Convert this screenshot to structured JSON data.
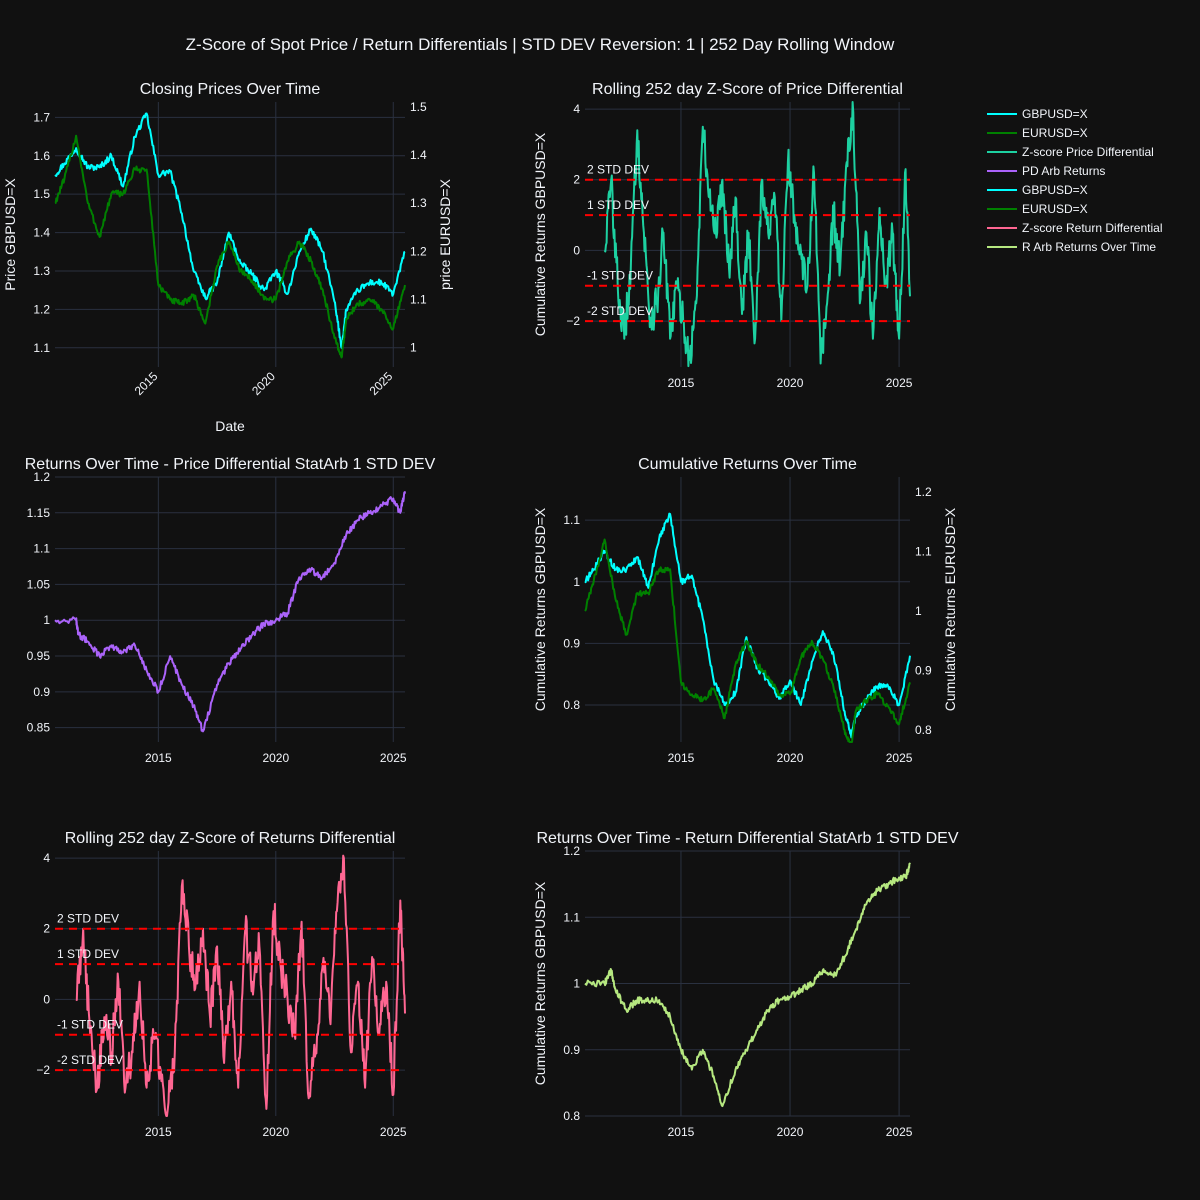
{
  "figure": {
    "title": "Z-Score of Spot Price / Return Differentials | STD DEV Reversion: 1 | 252 Day Rolling Window",
    "background": "#111111",
    "grid_color": "#2a3140",
    "text_color": "#f2f5fa"
  },
  "colors": {
    "gbpusd": "#00ffff",
    "eurusd": "#008000",
    "zscore_price": "#1dd1a1",
    "pd_arb": "#ab63fa",
    "zscore_return": "#ff6692",
    "r_arb": "#b6e880",
    "std_lines": "#ff0000"
  },
  "legend": {
    "position": "top-right",
    "items": [
      {
        "label": "GBPUSD=X",
        "color": "#00ffff"
      },
      {
        "label": "EURUSD=X",
        "color": "#008000"
      },
      {
        "label": "Z-score Price Differential",
        "color": "#1dd1a1"
      },
      {
        "label": "PD Arb Returns",
        "color": "#ab63fa"
      },
      {
        "label": "GBPUSD=X",
        "color": "#00ffff"
      },
      {
        "label": "EURUSD=X",
        "color": "#008000"
      },
      {
        "label": "Z-score Return Differential",
        "color": "#ff6692"
      },
      {
        "label": "R Arb Returns Over Time",
        "color": "#b6e880"
      }
    ]
  },
  "chart_data": [
    {
      "id": "closing",
      "type": "line",
      "title": "Closing Prices Over Time",
      "xlabel": "Date",
      "ylabel": "Price GBPUSD=X",
      "ylabel2": "price EURUSD=X",
      "xlim": [
        2010.6,
        2025.5
      ],
      "xticks": [
        2015,
        2020,
        2025
      ],
      "ylim": [
        1.05,
        1.74
      ],
      "yticks": [
        1.1,
        1.2,
        1.3,
        1.4,
        1.5,
        1.6,
        1.7
      ],
      "ylim2": [
        0.96,
        1.51
      ],
      "yticks2": [
        1,
        1.1,
        1.2,
        1.3,
        1.4,
        1.5
      ],
      "rotated_xticks": true,
      "series": [
        {
          "name": "GBPUSD=X",
          "color_key": "gbpusd",
          "axis": "y",
          "x": [
            2010.6,
            2011.0,
            2011.5,
            2012.0,
            2012.5,
            2013.0,
            2013.5,
            2014.0,
            2014.5,
            2015.0,
            2015.5,
            2016.0,
            2016.5,
            2017.0,
            2017.5,
            2018.0,
            2018.5,
            2019.0,
            2019.5,
            2020.0,
            2020.5,
            2021.0,
            2021.5,
            2022.0,
            2022.5,
            2022.8,
            2023.0,
            2023.5,
            2024.0,
            2024.5,
            2025.0,
            2025.5
          ],
          "y": [
            1.55,
            1.58,
            1.62,
            1.57,
            1.57,
            1.6,
            1.52,
            1.65,
            1.71,
            1.55,
            1.56,
            1.45,
            1.3,
            1.23,
            1.27,
            1.4,
            1.32,
            1.29,
            1.25,
            1.3,
            1.24,
            1.35,
            1.41,
            1.35,
            1.22,
            1.1,
            1.2,
            1.25,
            1.27,
            1.27,
            1.24,
            1.35
          ]
        },
        {
          "name": "EURUSD=X",
          "color_key": "eurusd",
          "axis": "y2",
          "x": [
            2010.6,
            2011.0,
            2011.5,
            2012.0,
            2012.5,
            2013.0,
            2013.5,
            2014.0,
            2014.5,
            2015.0,
            2015.5,
            2016.0,
            2016.5,
            2017.0,
            2017.5,
            2018.0,
            2018.5,
            2019.0,
            2019.5,
            2020.0,
            2020.5,
            2021.0,
            2021.5,
            2022.0,
            2022.5,
            2022.8,
            2023.0,
            2023.5,
            2024.0,
            2024.5,
            2025.0,
            2025.5
          ],
          "y": [
            1.3,
            1.35,
            1.44,
            1.3,
            1.23,
            1.32,
            1.32,
            1.37,
            1.37,
            1.13,
            1.1,
            1.09,
            1.11,
            1.05,
            1.17,
            1.22,
            1.16,
            1.14,
            1.1,
            1.1,
            1.18,
            1.22,
            1.18,
            1.12,
            1.02,
            0.98,
            1.06,
            1.09,
            1.1,
            1.08,
            1.04,
            1.13
          ]
        }
      ]
    },
    {
      "id": "zprice",
      "type": "line",
      "title": "Rolling 252 day Z-Score of Price Differential",
      "xlabel": "",
      "ylabel": "Cumulative Returns GBPUSD=X",
      "xlim": [
        2010.6,
        2025.5
      ],
      "xticks": [
        2015,
        2020,
        2025
      ],
      "ylim": [
        -3.3,
        4.2
      ],
      "yticks": [
        -2,
        0,
        2,
        4
      ],
      "ytick_labels": [
        "−2",
        "0",
        "2",
        "4"
      ],
      "hlines": [
        {
          "y": 2,
          "label": "2 STD DEV"
        },
        {
          "y": 1,
          "label": "1 STD DEV"
        },
        {
          "y": -1,
          "label": "-1 STD DEV"
        },
        {
          "y": -2,
          "label": "-2 STD DEV"
        }
      ],
      "series": [
        {
          "name": "Z-score Price Differential",
          "color_key": "zscore_price",
          "axis": "y",
          "x": [
            2011.5,
            2011.8,
            2012.1,
            2012.4,
            2012.7,
            2013.0,
            2013.3,
            2013.6,
            2013.9,
            2014.2,
            2014.5,
            2014.8,
            2015.1,
            2015.4,
            2015.7,
            2016.0,
            2016.3,
            2016.6,
            2016.9,
            2017.2,
            2017.5,
            2017.8,
            2018.1,
            2018.4,
            2018.7,
            2019.0,
            2019.3,
            2019.6,
            2019.9,
            2020.2,
            2020.5,
            2020.8,
            2021.1,
            2021.4,
            2021.7,
            2022.0,
            2022.3,
            2022.6,
            2022.9,
            2023.2,
            2023.5,
            2023.8,
            2024.1,
            2024.4,
            2024.7,
            2025.0,
            2025.3,
            2025.5
          ],
          "y": [
            0,
            2,
            -1,
            -2.5,
            -0.5,
            3.4,
            0.5,
            -2.0,
            -1.5,
            0.5,
            -2.5,
            -1.0,
            -2.0,
            -3.1,
            -1.5,
            3.5,
            1.5,
            0.5,
            2.0,
            -0.5,
            1.5,
            -1.8,
            0.5,
            -2.5,
            2.0,
            0.5,
            1.5,
            -2.0,
            2.5,
            1.0,
            0.0,
            -1.0,
            2.2,
            -3.2,
            -1.5,
            1.0,
            -0.5,
            2.5,
            3.9,
            -1.5,
            0.5,
            -2.5,
            1.2,
            -1.0,
            0.5,
            -2.5,
            2.3,
            -1.3
          ]
        }
      ]
    },
    {
      "id": "pdarb",
      "type": "line",
      "title": "Returns Over Time - Price Differential StatArb 1 STD DEV",
      "xlabel": "",
      "ylabel": "",
      "xlim": [
        2010.6,
        2025.5
      ],
      "xticks": [
        2015,
        2020,
        2025
      ],
      "ylim": [
        0.83,
        1.2
      ],
      "yticks": [
        0.85,
        0.9,
        0.95,
        1,
        1.05,
        1.1,
        1.15,
        1.2
      ],
      "series": [
        {
          "name": "PD Arb Returns",
          "color_key": "pd_arb",
          "axis": "y",
          "x": [
            2010.6,
            2011.5,
            2011.6,
            2012.0,
            2012.5,
            2013.0,
            2013.5,
            2014.0,
            2014.5,
            2015.0,
            2015.5,
            2016.0,
            2016.5,
            2016.9,
            2017.5,
            2018.0,
            2018.5,
            2019.0,
            2019.5,
            2020.0,
            2020.5,
            2021.0,
            2021.5,
            2022.0,
            2022.5,
            2023.0,
            2023.5,
            2024.0,
            2024.5,
            2025.0,
            2025.3,
            2025.5
          ],
          "y": [
            1.0,
            1.0,
            0.98,
            0.97,
            0.95,
            0.965,
            0.955,
            0.965,
            0.93,
            0.9,
            0.95,
            0.91,
            0.88,
            0.845,
            0.91,
            0.94,
            0.96,
            0.98,
            0.995,
            1.0,
            1.01,
            1.06,
            1.07,
            1.06,
            1.08,
            1.12,
            1.14,
            1.15,
            1.16,
            1.17,
            1.15,
            1.18
          ]
        }
      ]
    },
    {
      "id": "cumret",
      "type": "line",
      "title": "Cumulative Returns Over Time",
      "xlabel": "",
      "ylabel": "Cumulative Returns GBPUSD=X",
      "ylabel2": "Cumulative Returns EURUSD=X",
      "xlim": [
        2010.6,
        2025.5
      ],
      "xticks": [
        2015,
        2020,
        2025
      ],
      "ylim": [
        0.74,
        1.17
      ],
      "yticks": [
        0.8,
        0.9,
        1,
        1.1
      ],
      "ylim2": [
        0.78,
        1.225
      ],
      "yticks2": [
        0.8,
        0.9,
        1,
        1.1,
        1.2
      ],
      "series": [
        {
          "name": "GBPUSD=X",
          "color_key": "gbpusd",
          "axis": "y",
          "x": [
            2010.6,
            2011.0,
            2011.5,
            2012.0,
            2012.5,
            2013.0,
            2013.5,
            2014.0,
            2014.5,
            2015.0,
            2015.5,
            2016.0,
            2016.5,
            2017.0,
            2017.5,
            2018.0,
            2018.5,
            2019.0,
            2019.5,
            2020.0,
            2020.5,
            2021.0,
            2021.5,
            2022.0,
            2022.5,
            2022.8,
            2023.0,
            2023.5,
            2024.0,
            2024.5,
            2025.0,
            2025.5
          ],
          "y": [
            1.0,
            1.02,
            1.05,
            1.02,
            1.02,
            1.04,
            0.99,
            1.07,
            1.11,
            1.0,
            1.01,
            0.94,
            0.84,
            0.8,
            0.82,
            0.91,
            0.86,
            0.84,
            0.81,
            0.84,
            0.8,
            0.87,
            0.92,
            0.88,
            0.79,
            0.75,
            0.78,
            0.81,
            0.83,
            0.83,
            0.8,
            0.88
          ]
        },
        {
          "name": "EURUSD=X",
          "color_key": "eurusd",
          "axis": "y2",
          "x": [
            2010.6,
            2011.0,
            2011.5,
            2012.0,
            2012.5,
            2013.0,
            2013.5,
            2014.0,
            2014.5,
            2015.0,
            2015.5,
            2016.0,
            2016.5,
            2017.0,
            2017.5,
            2018.0,
            2018.5,
            2019.0,
            2019.5,
            2020.0,
            2020.5,
            2021.0,
            2021.5,
            2022.0,
            2022.5,
            2022.8,
            2023.0,
            2023.5,
            2024.0,
            2024.5,
            2025.0,
            2025.5
          ],
          "y": [
            1.0,
            1.05,
            1.12,
            1.02,
            0.96,
            1.03,
            1.03,
            1.07,
            1.07,
            0.88,
            0.86,
            0.85,
            0.87,
            0.82,
            0.91,
            0.95,
            0.91,
            0.89,
            0.86,
            0.86,
            0.92,
            0.95,
            0.92,
            0.87,
            0.8,
            0.77,
            0.83,
            0.85,
            0.86,
            0.84,
            0.81,
            0.88
          ]
        }
      ]
    },
    {
      "id": "zret",
      "type": "line",
      "title": "Rolling 252 day Z-Score of Returns Differential",
      "xlabel": "",
      "ylabel": "",
      "xlim": [
        2010.6,
        2025.5
      ],
      "xticks": [
        2015,
        2020,
        2025
      ],
      "ylim": [
        -3.3,
        4.2
      ],
      "yticks": [
        -2,
        0,
        2,
        4
      ],
      "ytick_labels": [
        "−2",
        "0",
        "2",
        "4"
      ],
      "hlines": [
        {
          "y": 2,
          "label": "2 STD DEV"
        },
        {
          "y": 1,
          "label": "1 STD DEV"
        },
        {
          "y": -1,
          "label": "-1 STD DEV"
        },
        {
          "y": -2,
          "label": "-2 STD DEV"
        }
      ],
      "series": [
        {
          "name": "Z-score Return Differential",
          "color_key": "zscore_return",
          "axis": "y",
          "x": [
            2011.5,
            2011.8,
            2012.1,
            2012.4,
            2012.7,
            2013.0,
            2013.3,
            2013.6,
            2013.9,
            2014.2,
            2014.5,
            2014.8,
            2015.1,
            2015.4,
            2015.7,
            2016.0,
            2016.3,
            2016.6,
            2016.9,
            2017.2,
            2017.5,
            2017.8,
            2018.1,
            2018.4,
            2018.7,
            2019.0,
            2019.3,
            2019.6,
            2019.9,
            2020.2,
            2020.5,
            2020.8,
            2021.1,
            2021.4,
            2021.7,
            2022.0,
            2022.3,
            2022.6,
            2022.9,
            2023.2,
            2023.5,
            2023.8,
            2024.1,
            2024.4,
            2024.7,
            2025.0,
            2025.3,
            2025.5
          ],
          "y": [
            0,
            2,
            -1,
            -2.5,
            -0.5,
            -1.5,
            0.5,
            -2.5,
            -1.5,
            0.5,
            -2.5,
            -1.0,
            -2.0,
            -3.1,
            -1.5,
            3.2,
            1.5,
            0.5,
            2.0,
            -0.5,
            1.5,
            -1.8,
            0.5,
            -2.5,
            2.0,
            0.5,
            1.5,
            -3.1,
            2.5,
            1.0,
            0.0,
            -1.0,
            2.2,
            -2.8,
            -1.5,
            1.0,
            -0.5,
            2.5,
            4.0,
            -1.5,
            0.5,
            -2.5,
            1.2,
            -1.0,
            0.5,
            -2.7,
            2.8,
            -0.4
          ]
        }
      ]
    },
    {
      "id": "rarb",
      "type": "line",
      "title": "Returns Over Time - Return Differential StatArb 1 STD DEV",
      "xlabel": "",
      "ylabel": "Cumulative Returns GBPUSD=X",
      "xlim": [
        2010.6,
        2025.5
      ],
      "xticks": [
        2015,
        2020,
        2025
      ],
      "ylim": [
        0.8,
        1.2
      ],
      "yticks": [
        0.8,
        0.9,
        1,
        1.1,
        1.2
      ],
      "series": [
        {
          "name": "R Arb Returns Over Time",
          "color_key": "r_arb",
          "axis": "y",
          "x": [
            2010.6,
            2011.5,
            2011.8,
            2012.0,
            2012.5,
            2013.0,
            2013.5,
            2014.0,
            2014.5,
            2015.0,
            2015.5,
            2016.0,
            2016.5,
            2016.9,
            2017.5,
            2018.0,
            2018.5,
            2019.0,
            2019.5,
            2020.0,
            2020.5,
            2021.0,
            2021.5,
            2022.0,
            2022.5,
            2023.0,
            2023.5,
            2024.0,
            2024.5,
            2025.0,
            2025.3,
            2025.5
          ],
          "y": [
            1.0,
            1.0,
            1.02,
            0.99,
            0.96,
            0.975,
            0.975,
            0.975,
            0.95,
            0.9,
            0.87,
            0.9,
            0.86,
            0.815,
            0.87,
            0.9,
            0.93,
            0.96,
            0.975,
            0.98,
            0.99,
            1.0,
            1.02,
            1.01,
            1.04,
            1.08,
            1.12,
            1.14,
            1.15,
            1.16,
            1.16,
            1.18
          ]
        }
      ]
    }
  ]
}
